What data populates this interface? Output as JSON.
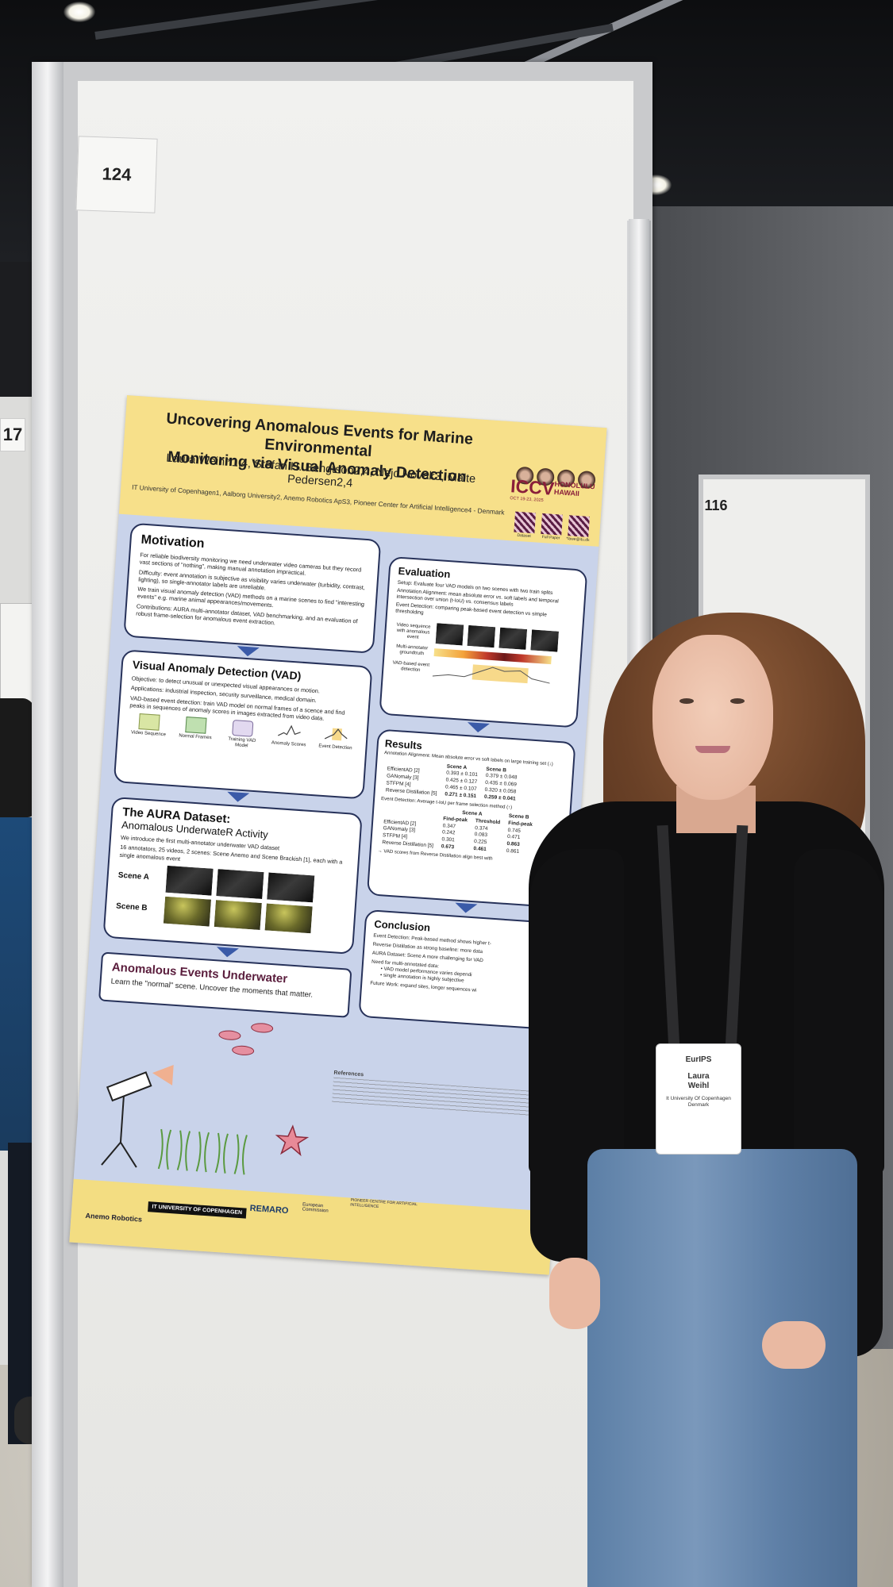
{
  "scene": {
    "board_number_left": "124",
    "board_number_right": "116",
    "board_number_far_left": "17"
  },
  "poster": {
    "title_line1": "Uncovering Anomalous Events for Marine Environmental",
    "title_line2": "Monitoring via Visual Anomaly Detection",
    "authors": "Laura Weihl*1,4, Stefan H. Bengtson2,4, Nejc Novak3, Malte Pedersen2,4",
    "affiliations": "IT University of Copenhagen1, Aalborg University2, Anemo Robotics ApS3, Pioneer Center for Artificial Intelligence4 - Denmark",
    "conference": {
      "name": "ICCV",
      "dates": "OCT 19-23, 2025",
      "location_line1": "HONOLULU",
      "location_line2": "HAWAII",
      "qr_labels": [
        "Dataset",
        "Full Paper",
        "*lawe@itu.dk"
      ]
    },
    "motivation": {
      "heading": "Motivation",
      "b1": "For reliable biodiversity monitoring we need underwater video cameras but they record vast sections of \"nothing\", making manual annotation impractical.",
      "b2": "Difficulty: event annotation is subjective as visibility varies underwater (turbidity, contrast, lighting), so single-annotator labels are unreliable.",
      "b3": "We train visual anomaly detection (VAD) methods on a marine scenes to find \"interesting events\" e.g. marine animal appearances/movements.",
      "b4": "Contributions: AURA multi-annotator dataset, VAD benchmarking, and an evaluation of robust frame-selection for anomalous event extraction."
    },
    "vad": {
      "heading": "Visual Anomaly Detection (VAD)",
      "b1": "Objective: to detect unusual or unexpected visual appearances or motion.",
      "b2": "Applications: industrial inspection, security surveillance, medical domain.",
      "b3": "VAD-based event detection: train VAD model on normal frames of a scence and find peaks in sequences of anomaly scores in images extracted from video data.",
      "pipeline": [
        "Video Sequence",
        "Normal Frames",
        "Training VAD Model",
        "Anomaly Scores",
        "Event Detection"
      ]
    },
    "aura": {
      "heading_line1": "The AURA Dataset:",
      "heading_line2": "Anomalous UnderwateR Activity",
      "b1": "We introduce the first multi-annotator underwater VAD dataset",
      "b2": "16 annotators, 25 videos, 2 scenes: Scene Anemo and Scene Brackish [1], each with a single anomalous event",
      "scene_a": "Scene A",
      "scene_b": "Scene B"
    },
    "banner": {
      "heading": "Anomalous Events Underwater",
      "tagline": "Learn the \"normal\" scene. Uncover the moments that matter."
    },
    "evaluation": {
      "heading": "Evaluation",
      "b1": "Setup: Evaluate four VAD models on two scenes with two train splits",
      "b2": "Annotation Alignment: mean absolute error vs. soft labels and temporal intersection over union (t-IoU) vs. consensus labels",
      "b3": "Event Detection: comparing peak-based event detection vs simple thresholding",
      "row1": "Video sequence with anomalous event",
      "row2": "Multi-annotator groundtruth",
      "row3": "VAD-based event detection"
    },
    "results": {
      "heading": "Results",
      "align_caption": "Annotation Alignment: Mean absolute error vs soft labels on large training set (↓)",
      "table1_headers": [
        "",
        "Scene A",
        "Scene B"
      ],
      "table1_rows": [
        [
          "EfficientAD [2]",
          "0.393 ± 0.101",
          "0.379 ± 0.048"
        ],
        [
          "GANomaly [3]",
          "0.425 ± 0.127",
          "0.435 ± 0.069"
        ],
        [
          "STFPM [4]",
          "0.465 ± 0.107",
          "0.320 ± 0.058"
        ],
        [
          "Reverse Distillation [5]",
          "0.271 ± 0.151",
          "0.259 ± 0.041"
        ]
      ],
      "event_caption": "Event Detection: Average t-IoU per frame selection method (↑)",
      "table2_group": [
        "Scene A",
        "Scene B"
      ],
      "table2_headers": [
        "",
        "Find-peak",
        "Threshold",
        "Find-peak"
      ],
      "table2_rows": [
        [
          "EfficientAD [2]",
          "0.347",
          "0.374",
          "0.745"
        ],
        [
          "GANomaly [3]",
          "0.242",
          "0.083",
          "0.471"
        ],
        [
          "STFPM [4]",
          "0.301",
          "0.225",
          "0.863"
        ],
        [
          "Reverse Distillation [5]",
          "0.673",
          "0.461",
          "0.861"
        ]
      ],
      "note": "→ VAD scores from Reverse Distillation align best with"
    },
    "conclusion": {
      "heading": "Conclusion",
      "b1": "Event Detection: Peak-based method shows higher t-",
      "b2": "Reverse Distillation as strong baseline: more data",
      "b3": "AURA Dataset: Scene A more challenging for VAD",
      "b4": "Need for multi-annotated data:",
      "b4a": "• VAD model performance varies dependi",
      "b4b": "• single annotation is highly subjective",
      "b5": "Future Work: expand sites, longer sequences wi"
    },
    "references_heading": "References",
    "footer_logos": [
      "Anemo Robotics",
      "IT UNIVERSITY OF COPENHAGEN",
      "REMARO",
      "European Commission",
      "PIONEER CENTRE FOR ARTIFICIAL INTELLIGENCE"
    ]
  },
  "badge": {
    "logo": "EurIPS",
    "name_line1": "Laura",
    "name_line2": "Weihl",
    "affiliation_line1": "It University Of Copenhagen",
    "affiliation_line2": "Denmark"
  }
}
